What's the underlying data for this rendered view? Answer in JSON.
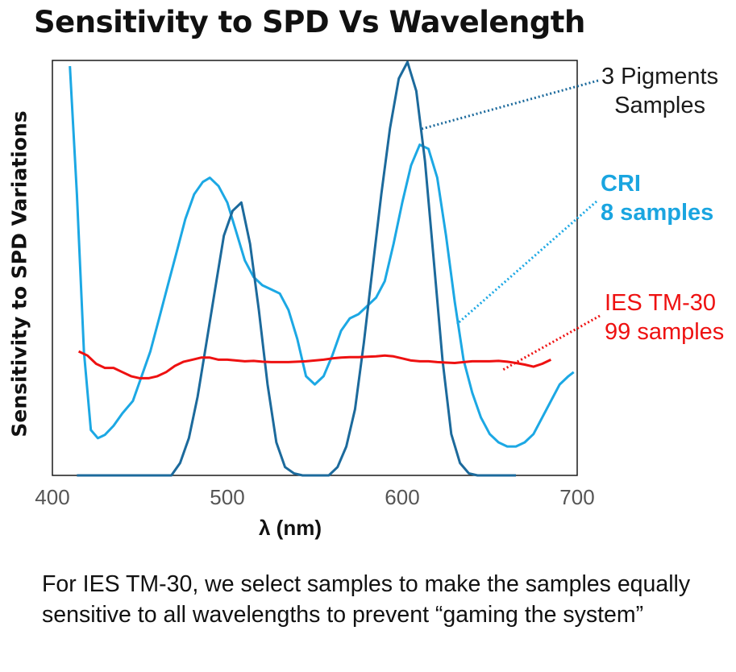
{
  "chart_data": {
    "type": "line",
    "title": "Sensitivity to SPD Vs Wavelength",
    "xlabel": "λ (nm)",
    "ylabel": "Sensitivity to SPD Variations",
    "xlim": [
      400,
      700
    ],
    "ylim": [
      0,
      1
    ],
    "x_ticks": [
      "400",
      "500",
      "600",
      "700"
    ],
    "grid": false,
    "series": [
      {
        "name": "3 Pigments Samples",
        "label_lines": [
          "3 Pigments",
          "Samples"
        ],
        "color": "#1c6a9c",
        "points": [
          [
            414,
            0
          ],
          [
            468,
            0
          ],
          [
            473,
            0.03
          ],
          [
            478,
            0.09
          ],
          [
            483,
            0.19
          ],
          [
            488,
            0.32
          ],
          [
            493,
            0.45
          ],
          [
            498,
            0.58
          ],
          [
            503,
            0.64
          ],
          [
            508,
            0.66
          ],
          [
            513,
            0.56
          ],
          [
            518,
            0.4
          ],
          [
            523,
            0.22
          ],
          [
            528,
            0.08
          ],
          [
            533,
            0.02
          ],
          [
            538,
            0.005
          ],
          [
            543,
            0
          ],
          [
            558,
            0
          ],
          [
            563,
            0.02
          ],
          [
            568,
            0.07
          ],
          [
            573,
            0.16
          ],
          [
            578,
            0.32
          ],
          [
            583,
            0.5
          ],
          [
            588,
            0.68
          ],
          [
            593,
            0.84
          ],
          [
            598,
            0.96
          ],
          [
            603,
            1.0
          ],
          [
            608,
            0.93
          ],
          [
            613,
            0.76
          ],
          [
            618,
            0.52
          ],
          [
            623,
            0.28
          ],
          [
            628,
            0.1
          ],
          [
            633,
            0.03
          ],
          [
            638,
            0.005
          ],
          [
            643,
            0
          ],
          [
            665,
            0
          ]
        ]
      },
      {
        "name": "CRI 8 samples",
        "label_lines": [
          "CRI",
          "8 samples"
        ],
        "color": "#1ca8e4",
        "points": [
          [
            410,
            0.99
          ],
          [
            414,
            0.68
          ],
          [
            418,
            0.3
          ],
          [
            422,
            0.11
          ],
          [
            426,
            0.09
          ],
          [
            430,
            0.098
          ],
          [
            435,
            0.12
          ],
          [
            440,
            0.15
          ],
          [
            446,
            0.18
          ],
          [
            451,
            0.24
          ],
          [
            456,
            0.3
          ],
          [
            461,
            0.38
          ],
          [
            466,
            0.46
          ],
          [
            471,
            0.54
          ],
          [
            476,
            0.62
          ],
          [
            481,
            0.68
          ],
          [
            486,
            0.71
          ],
          [
            490,
            0.72
          ],
          [
            495,
            0.7
          ],
          [
            500,
            0.66
          ],
          [
            505,
            0.59
          ],
          [
            510,
            0.52
          ],
          [
            515,
            0.48
          ],
          [
            520,
            0.46
          ],
          [
            525,
            0.45
          ],
          [
            530,
            0.44
          ],
          [
            535,
            0.4
          ],
          [
            540,
            0.33
          ],
          [
            545,
            0.24
          ],
          [
            550,
            0.22
          ],
          [
            555,
            0.24
          ],
          [
            560,
            0.29
          ],
          [
            565,
            0.35
          ],
          [
            570,
            0.38
          ],
          [
            575,
            0.39
          ],
          [
            580,
            0.41
          ],
          [
            585,
            0.43
          ],
          [
            590,
            0.47
          ],
          [
            595,
            0.56
          ],
          [
            600,
            0.66
          ],
          [
            605,
            0.75
          ],
          [
            610,
            0.8
          ],
          [
            615,
            0.79
          ],
          [
            620,
            0.72
          ],
          [
            625,
            0.58
          ],
          [
            630,
            0.42
          ],
          [
            635,
            0.28
          ],
          [
            640,
            0.2
          ],
          [
            645,
            0.14
          ],
          [
            650,
            0.1
          ],
          [
            655,
            0.08
          ],
          [
            660,
            0.07
          ],
          [
            665,
            0.07
          ],
          [
            670,
            0.08
          ],
          [
            675,
            0.1
          ],
          [
            680,
            0.14
          ],
          [
            685,
            0.18
          ],
          [
            690,
            0.22
          ],
          [
            695,
            0.24
          ],
          [
            698,
            0.25
          ]
        ]
      },
      {
        "name": "IES TM-30 99 samples",
        "label_lines": [
          "IES TM-30",
          "99 samples"
        ],
        "color": "#ee1111",
        "points": [
          [
            415,
            0.3
          ],
          [
            420,
            0.29
          ],
          [
            425,
            0.27
          ],
          [
            430,
            0.26
          ],
          [
            435,
            0.26
          ],
          [
            440,
            0.25
          ],
          [
            445,
            0.24
          ],
          [
            450,
            0.235
          ],
          [
            455,
            0.235
          ],
          [
            460,
            0.24
          ],
          [
            465,
            0.25
          ],
          [
            470,
            0.265
          ],
          [
            475,
            0.275
          ],
          [
            480,
            0.28
          ],
          [
            485,
            0.285
          ],
          [
            490,
            0.285
          ],
          [
            495,
            0.28
          ],
          [
            500,
            0.28
          ],
          [
            505,
            0.278
          ],
          [
            510,
            0.276
          ],
          [
            515,
            0.277
          ],
          [
            520,
            0.275
          ],
          [
            525,
            0.274
          ],
          [
            530,
            0.274
          ],
          [
            535,
            0.274
          ],
          [
            540,
            0.275
          ],
          [
            545,
            0.276
          ],
          [
            550,
            0.278
          ],
          [
            555,
            0.28
          ],
          [
            560,
            0.283
          ],
          [
            565,
            0.285
          ],
          [
            570,
            0.286
          ],
          [
            575,
            0.286
          ],
          [
            580,
            0.287
          ],
          [
            585,
            0.288
          ],
          [
            590,
            0.29
          ],
          [
            595,
            0.288
          ],
          [
            600,
            0.283
          ],
          [
            605,
            0.278
          ],
          [
            610,
            0.276
          ],
          [
            615,
            0.276
          ],
          [
            620,
            0.274
          ],
          [
            625,
            0.273
          ],
          [
            630,
            0.272
          ],
          [
            635,
            0.274
          ],
          [
            640,
            0.276
          ],
          [
            645,
            0.276
          ],
          [
            650,
            0.276
          ],
          [
            655,
            0.277
          ],
          [
            660,
            0.275
          ],
          [
            665,
            0.272
          ],
          [
            670,
            0.268
          ],
          [
            675,
            0.263
          ],
          [
            680,
            0.27
          ],
          [
            685,
            0.28
          ]
        ]
      }
    ]
  },
  "caption": "For IES TM-30, we select samples to make the samples equally sensitive to all wavelengths to prevent “gaming the system”"
}
